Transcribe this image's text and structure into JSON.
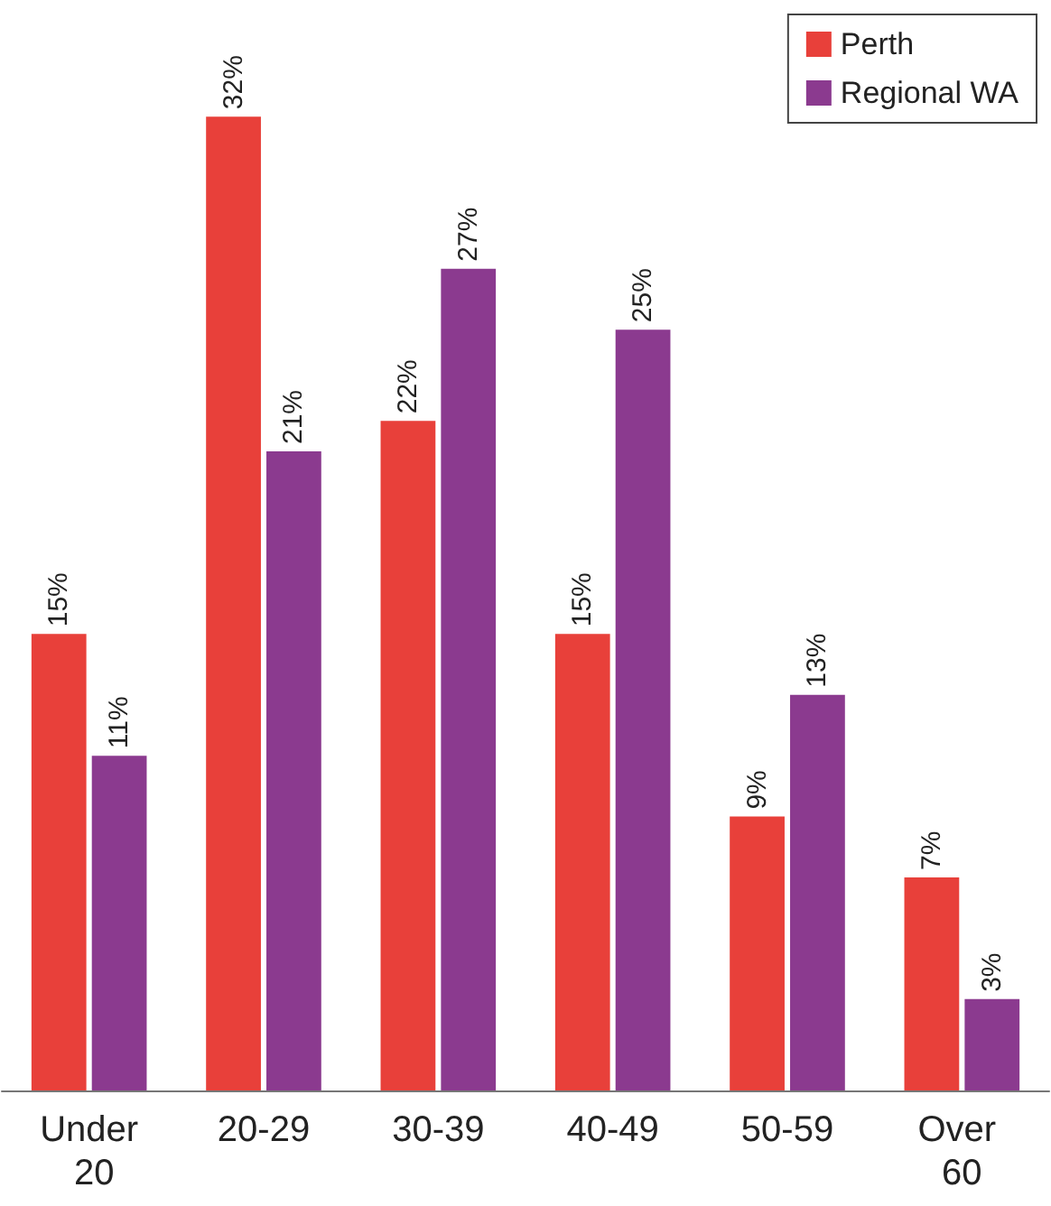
{
  "chart_data": {
    "type": "bar",
    "categories": [
      "Under 20",
      "20-29",
      "30-39",
      "40-49",
      "50-59",
      "Over 60"
    ],
    "series": [
      {
        "name": "Perth",
        "color": "#e8403a",
        "values": [
          15,
          32,
          22,
          15,
          9,
          7
        ],
        "value_labels": [
          "15%",
          "32%",
          "22%",
          "15%",
          "9%",
          "7%"
        ]
      },
      {
        "name": "Regional WA",
        "color": "#8b3a8f",
        "values": [
          11,
          21,
          27,
          25,
          13,
          3
        ],
        "value_labels": [
          "11%",
          "21%",
          "27%",
          "25%",
          "13%",
          "3%"
        ]
      }
    ],
    "legend": "top right"
  }
}
